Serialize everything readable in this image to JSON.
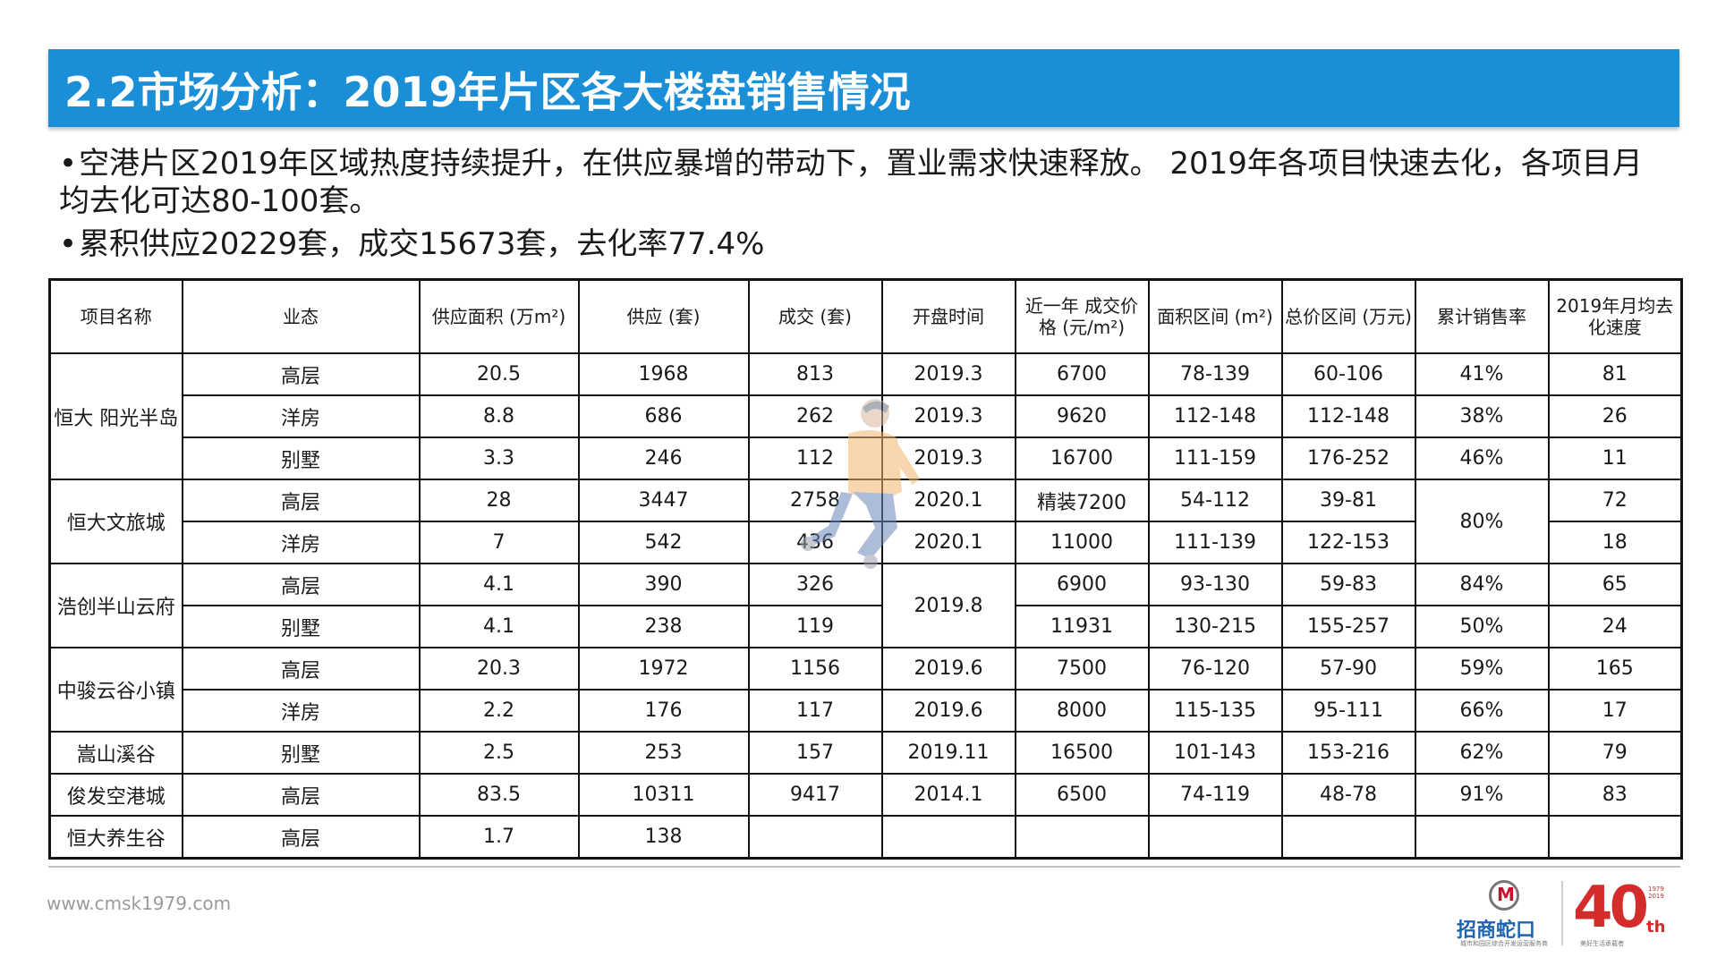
{
  "header": {
    "title": "2.2市场分析：2019年片区各大楼盘销售情况"
  },
  "bullets": [
    {
      "dot": "•",
      "text": "空港片区2019年区域热度持续提升，在供应暴增的带动下，置业需求快速释放。 2019年各项目快速去化，各项目月均去化可达80-100套。"
    },
    {
      "dot": "•",
      "text": "累积供应20229套，成交15673套，去化率77.4%"
    }
  ],
  "table": {
    "headers": [
      "项目名称",
      "业态",
      "供应面积 (万m²)",
      "供应 (套)",
      "成交 (套)",
      "开盘时间",
      "近一年 成交价格 (元/m²)",
      "面积区间 (m²)",
      "总价区间 (万元)",
      "累计销售率",
      "2019年月均去化速度"
    ],
    "projects": [
      {
        "name": "恒大 阳光半岛",
        "rows": [
          {
            "type": "高层",
            "area": "20.5",
            "supply": "1968",
            "sold": "813",
            "open": "2019.3",
            "price": "6700",
            "size": "78-139",
            "total": "60-106",
            "rate": "41%",
            "speed": "81"
          },
          {
            "type": "洋房",
            "area": "8.8",
            "supply": "686",
            "sold": "262",
            "open": "2019.3",
            "price": "9620",
            "size": "112-148",
            "total": "112-148",
            "rate": "38%",
            "speed": "26"
          },
          {
            "type": "别墅",
            "area": "3.3",
            "supply": "246",
            "sold": "112",
            "open": "2019.3",
            "price": "16700",
            "size": "111-159",
            "total": "176-252",
            "rate": "46%",
            "speed": "11"
          }
        ]
      },
      {
        "name": "恒大文旅城",
        "rate_merged": "80%",
        "rows": [
          {
            "type": "高层",
            "area": "28",
            "supply": "3447",
            "sold": "2758",
            "open": "2020.1",
            "price": "精装7200",
            "size": "54-112",
            "total": "39-81",
            "speed": "72"
          },
          {
            "type": "洋房",
            "area": "7",
            "supply": "542",
            "sold": "436",
            "open": "2020.1",
            "price": "11000",
            "size": "111-139",
            "total": "122-153",
            "speed": "18"
          }
        ]
      },
      {
        "name": "浩创半山云府",
        "open_merged": "2019.8",
        "rows": [
          {
            "type": "高层",
            "area": "4.1",
            "supply": "390",
            "sold": "326",
            "price": "6900",
            "size": "93-130",
            "total": "59-83",
            "rate": "84%",
            "speed": "65"
          },
          {
            "type": "别墅",
            "area": "4.1",
            "supply": "238",
            "sold": "119",
            "price": "11931",
            "size": "130-215",
            "total": "155-257",
            "rate": "50%",
            "speed": "24"
          }
        ]
      },
      {
        "name": "中骏云谷小镇",
        "rows": [
          {
            "type": "高层",
            "area": "20.3",
            "supply": "1972",
            "sold": "1156",
            "open": "2019.6",
            "price": "7500",
            "size": "76-120",
            "total": "57-90",
            "rate": "59%",
            "speed": "165"
          },
          {
            "type": "洋房",
            "area": "2.2",
            "supply": "176",
            "sold": "117",
            "open": "2019.6",
            "price": "8000",
            "size": "115-135",
            "total": "95-111",
            "rate": "66%",
            "speed": "17"
          }
        ]
      },
      {
        "name": "嵩山溪谷",
        "rows": [
          {
            "type": "别墅",
            "area": "2.5",
            "supply": "253",
            "sold": "157",
            "open": "2019.11",
            "price": "16500",
            "size": "101-143",
            "total": "153-216",
            "rate": "62%",
            "speed": "79"
          }
        ]
      },
      {
        "name": "俊发空港城",
        "rows": [
          {
            "type": "高层",
            "area": "83.5",
            "supply": "10311",
            "sold": "9417",
            "open": "2014.1",
            "price": "6500",
            "size": "74-119",
            "total": "48-78",
            "rate": "91%",
            "speed": "83"
          }
        ]
      },
      {
        "name": "恒大养生谷",
        "rows": [
          {
            "type": "高层",
            "area": "1.7",
            "supply": "138",
            "sold": "",
            "open": "",
            "price": "",
            "size": "",
            "total": "",
            "rate": "",
            "speed": ""
          }
        ]
      }
    ]
  },
  "footer": {
    "website": "www.cmsk1979.com",
    "logo_name": "招商蛇口",
    "logo_sub": "城市和园区综合开发运营服务商",
    "anniv_num": "40",
    "anniv_th": "th",
    "anniv_years": "1979\n2019",
    "anniv_sub": "美好生活承载者",
    "accent_color": "#1a8fd8",
    "anniv_color": "#d42b2b"
  }
}
